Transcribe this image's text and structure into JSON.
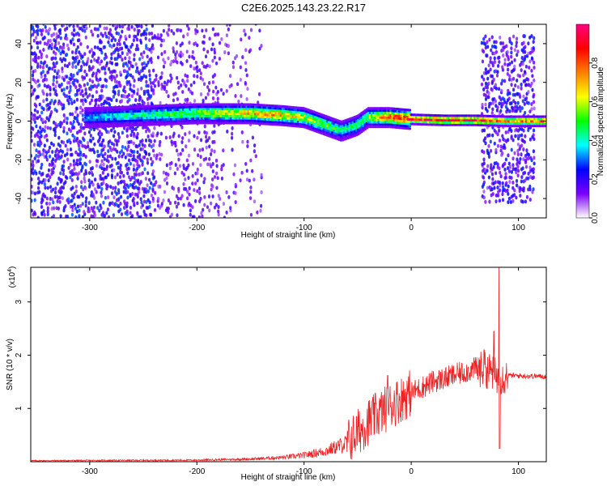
{
  "title": "C2E6.2025.143.23.22.R17",
  "colors": {
    "snr_line": "#ee2222",
    "axis": "#000000"
  },
  "chart_data": [
    {
      "type": "heatmap",
      "xlabel": "Height of straight line (km)",
      "ylabel": "Frequency (Hz)",
      "xlim": [
        -355,
        126
      ],
      "ylim": [
        -50,
        50
      ],
      "xticks": [
        -300,
        -200,
        -100,
        0,
        100
      ],
      "yticks": [
        -40,
        -20,
        0,
        20,
        40
      ],
      "colorbar": {
        "label": "Normalized spectral amplitude",
        "range": [
          0,
          1
        ],
        "ticks": [
          "0.0",
          "0.2",
          "0.4",
          "0.6",
          "0.8"
        ],
        "tick_values": [
          0,
          0.2,
          0.4,
          0.6,
          0.8
        ],
        "colors": [
          "#ffffff",
          "#7b00ff",
          "#0000ff",
          "#00ffff",
          "#00ff00",
          "#ffff00",
          "#ff8000",
          "#ff0000",
          "#ff0080"
        ]
      },
      "features": {
        "ridge_profile": [
          {
            "x": -300,
            "f": 2,
            "amp": 0.35
          },
          {
            "x": -250,
            "f": 3,
            "amp": 0.45
          },
          {
            "x": -200,
            "f": 4,
            "amp": 0.55
          },
          {
            "x": -150,
            "f": 4,
            "amp": 0.7
          },
          {
            "x": -120,
            "f": 3,
            "amp": 0.72
          },
          {
            "x": -100,
            "f": 2,
            "amp": 0.6
          },
          {
            "x": -80,
            "f": -2,
            "amp": 0.55
          },
          {
            "x": -65,
            "f": -5,
            "amp": 0.45
          },
          {
            "x": -50,
            "f": -2,
            "amp": 0.5
          },
          {
            "x": -40,
            "f": 2,
            "amp": 0.55
          },
          {
            "x": -20,
            "f": 2,
            "amp": 0.8
          },
          {
            "x": 0,
            "f": 1,
            "amp": 0.9
          },
          {
            "x": 30,
            "f": 0.5,
            "amp": 0.95
          },
          {
            "x": 60,
            "f": 0.5,
            "amp": 0.95
          },
          {
            "x": 90,
            "f": 0,
            "amp": 0.75
          },
          {
            "x": 126,
            "f": 0,
            "amp": 0.85
          }
        ],
        "noise_region_km": [
          -355,
          -140
        ],
        "noise_band_km": [
          65,
          115
        ]
      }
    },
    {
      "type": "line",
      "xlabel": "Height of straight line (km)",
      "ylabel": "SNR (10 * v/v)",
      "y_multiplier": "(x10",
      "y_multiplier_exp": "4",
      "y_multiplier_close": ")",
      "xlim": [
        -355,
        126
      ],
      "ylim": [
        0,
        3.65
      ],
      "xticks": [
        -300,
        -200,
        -100,
        0,
        100
      ],
      "yticks": [
        1,
        2,
        3
      ],
      "envelope": [
        {
          "x": -355,
          "y": 0.02
        },
        {
          "x": -200,
          "y": 0.03
        },
        {
          "x": -150,
          "y": 0.05
        },
        {
          "x": -120,
          "y": 0.08
        },
        {
          "x": -100,
          "y": 0.12
        },
        {
          "x": -80,
          "y": 0.2
        },
        {
          "x": -60,
          "y": 0.35
        },
        {
          "x": -40,
          "y": 0.75
        },
        {
          "x": -20,
          "y": 1.05
        },
        {
          "x": 0,
          "y": 1.3
        },
        {
          "x": 20,
          "y": 1.5
        },
        {
          "x": 40,
          "y": 1.62
        },
        {
          "x": 60,
          "y": 1.75
        },
        {
          "x": 75,
          "y": 1.7
        },
        {
          "x": 82,
          "y": 1.55
        },
        {
          "x": 90,
          "y": 1.62
        },
        {
          "x": 126,
          "y": 1.6
        }
      ],
      "spikes": [
        {
          "x": 77,
          "y": 2.45
        },
        {
          "x": 82,
          "y": 3.65
        },
        {
          "x": 82.5,
          "y": 0.25
        },
        {
          "x": -22,
          "y": 1.62
        },
        {
          "x": 68,
          "y": 2.1
        }
      ]
    }
  ]
}
